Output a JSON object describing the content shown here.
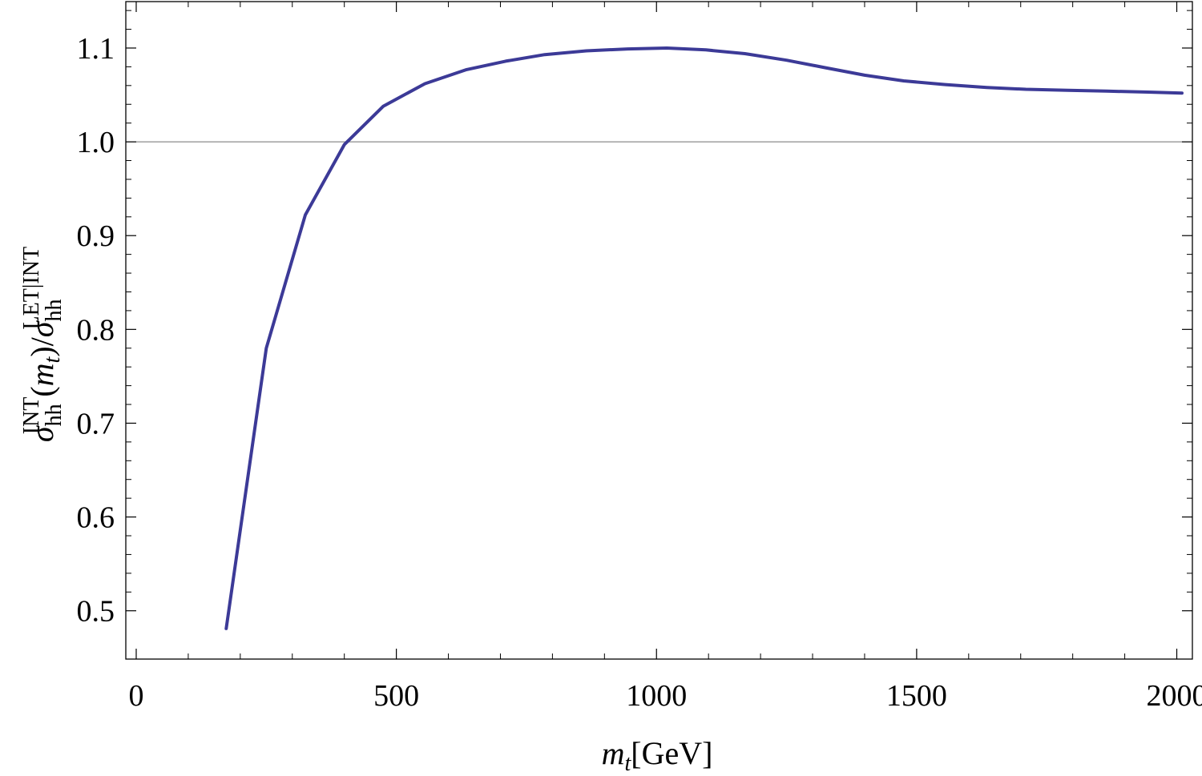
{
  "chart_data": {
    "type": "line",
    "title": "",
    "xlabel": "m_t [GeV]",
    "xlabel_parts": {
      "var": "m",
      "sub": "t",
      "unit": "[GeV]"
    },
    "ylabel": "σ_hh^INT(m_t)/σ_hh^LET|INT",
    "ylabel_parts": {
      "sigma": "σ",
      "sub1": "hh",
      "sup1": "INT",
      "arg_open": "(",
      "arg_var": "m",
      "arg_sub": "t",
      "arg_close": ")/",
      "sigma2": "σ",
      "sub2": "hh",
      "sup2": "LET|INT"
    },
    "xlim": [
      -20,
      2030
    ],
    "ylim": [
      0.4485,
      1.1495
    ],
    "x_ticks": [
      0,
      500,
      1000,
      1500,
      2000
    ],
    "x_tick_labels": [
      "0",
      "500",
      "1000",
      "1500",
      "2000"
    ],
    "x_minor_ticks": [
      100,
      200,
      300,
      400,
      600,
      700,
      800,
      900,
      1100,
      1200,
      1300,
      1400,
      1600,
      1700,
      1800,
      1900
    ],
    "y_ticks": [
      0.5,
      0.6,
      0.7,
      0.8,
      0.9,
      1.0,
      1.1
    ],
    "y_tick_labels": [
      "0.5",
      "0.6",
      "0.7",
      "0.8",
      "0.9",
      "1.0",
      "1.1"
    ],
    "y_minor_ticks": [
      0.52,
      0.54,
      0.56,
      0.58,
      0.62,
      0.64,
      0.66,
      0.68,
      0.72,
      0.74,
      0.76,
      0.78,
      0.82,
      0.84,
      0.86,
      0.88,
      0.92,
      0.94,
      0.96,
      0.98,
      1.02,
      1.04,
      1.06,
      1.08,
      1.12,
      1.14
    ],
    "reference_line_y": 1.0,
    "grid": false,
    "series": [
      {
        "color": "#3c3a97",
        "x": [
          173,
          250,
          325,
          400,
          475,
          555,
          635,
          710,
          785,
          865,
          945,
          1020,
          1095,
          1170,
          1250,
          1325,
          1400,
          1475,
          1555,
          1635,
          1710,
          1790,
          1865,
          1945,
          2010
        ],
        "y": [
          0.481,
          0.78,
          0.922,
          0.997,
          1.038,
          1.062,
          1.077,
          1.086,
          1.093,
          1.097,
          1.099,
          1.1,
          1.098,
          1.094,
          1.087,
          1.079,
          1.071,
          1.065,
          1.061,
          1.058,
          1.056,
          1.055,
          1.054,
          1.053,
          1.052
        ]
      }
    ]
  },
  "colors": {
    "frame": "#000000",
    "reference_line": "#8c8c8c",
    "series": "#3c3a97"
  }
}
